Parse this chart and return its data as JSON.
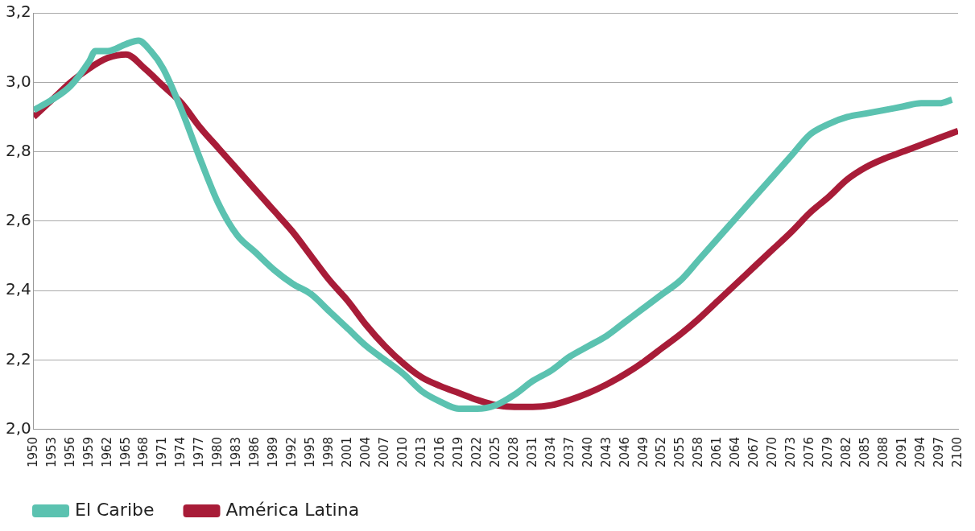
{
  "chart_data": {
    "type": "line",
    "xlim": [
      1950,
      2100
    ],
    "xticks": [
      1950,
      1953,
      1956,
      1959,
      1962,
      1965,
      1968,
      1971,
      1974,
      1977,
      1980,
      1983,
      1986,
      1989,
      1992,
      1995,
      1998,
      2001,
      2004,
      2007,
      2010,
      2013,
      2016,
      2019,
      2022,
      2025,
      2028,
      2031,
      2034,
      2037,
      2040,
      2043,
      2046,
      2049,
      2052,
      2055,
      2058,
      2061,
      2064,
      2067,
      2070,
      2073,
      2076,
      2079,
      2082,
      2085,
      2088,
      2091,
      2094,
      2097,
      2100
    ],
    "ylim": [
      2.0,
      3.2
    ],
    "yticks": [
      {
        "value": 2.0,
        "label": "2,0"
      },
      {
        "value": 2.2,
        "label": "2,2"
      },
      {
        "value": 2.4,
        "label": "2,4"
      },
      {
        "value": 2.6,
        "label": "2,6"
      },
      {
        "value": 2.8,
        "label": "2,8"
      },
      {
        "value": 3.0,
        "label": "3,0"
      },
      {
        "value": 3.2,
        "label": "3,2"
      }
    ],
    "grid": "y",
    "legend": "bottom left",
    "marker": "none",
    "line_style": "solid",
    "series": [
      {
        "name": "El Caribe",
        "color": "#5bc2b0",
        "x": [
          1950,
          1953,
          1956,
          1959,
          1960,
          1962,
          1965,
          1967,
          1969,
          1971,
          1974,
          1977,
          1980,
          1983,
          1986,
          1989,
          1992,
          1995,
          1998,
          2001,
          2004,
          2007,
          2010,
          2013,
          2016,
          2019,
          2022,
          2025,
          2028,
          2031,
          2034,
          2037,
          2040,
          2043,
          2046,
          2049,
          2052,
          2055,
          2058,
          2061,
          2064,
          2067,
          2070,
          2073,
          2076,
          2079,
          2082,
          2085,
          2088,
          2091,
          2094,
          2097,
          2099
        ],
        "values": [
          2.92,
          2.95,
          2.99,
          3.06,
          3.09,
          3.09,
          3.11,
          3.12,
          3.09,
          3.04,
          2.92,
          2.78,
          2.65,
          2.56,
          2.51,
          2.46,
          2.42,
          2.39,
          2.34,
          2.29,
          2.24,
          2.2,
          2.16,
          2.11,
          2.08,
          2.06,
          2.06,
          2.07,
          2.1,
          2.14,
          2.17,
          2.21,
          2.24,
          2.27,
          2.31,
          2.35,
          2.39,
          2.43,
          2.49,
          2.55,
          2.61,
          2.67,
          2.73,
          2.79,
          2.85,
          2.88,
          2.9,
          2.91,
          2.92,
          2.93,
          2.94,
          2.94,
          2.95
        ]
      },
      {
        "name": "América Latina",
        "color": "#a81c38",
        "x": [
          1950,
          1953,
          1956,
          1959,
          1962,
          1965,
          1968,
          1971,
          1974,
          1977,
          1980,
          1983,
          1986,
          1989,
          1992,
          1995,
          1998,
          2001,
          2004,
          2007,
          2010,
          2013,
          2016,
          2019,
          2022,
          2025,
          2028,
          2031,
          2034,
          2037,
          2040,
          2043,
          2046,
          2049,
          2052,
          2055,
          2058,
          2061,
          2064,
          2067,
          2070,
          2073,
          2076,
          2079,
          2082,
          2085,
          2088,
          2091,
          2094,
          2097,
          2100
        ],
        "values": [
          2.9,
          2.95,
          3.0,
          3.04,
          3.07,
          3.08,
          3.04,
          2.99,
          2.94,
          2.87,
          2.81,
          2.75,
          2.69,
          2.63,
          2.57,
          2.5,
          2.43,
          2.37,
          2.3,
          2.24,
          2.19,
          2.15,
          2.125,
          2.105,
          2.085,
          2.07,
          2.065,
          2.065,
          2.07,
          2.085,
          2.105,
          2.13,
          2.16,
          2.195,
          2.235,
          2.275,
          2.32,
          2.37,
          2.42,
          2.47,
          2.52,
          2.57,
          2.625,
          2.67,
          2.72,
          2.755,
          2.78,
          2.8,
          2.82,
          2.84,
          2.86
        ]
      }
    ]
  }
}
